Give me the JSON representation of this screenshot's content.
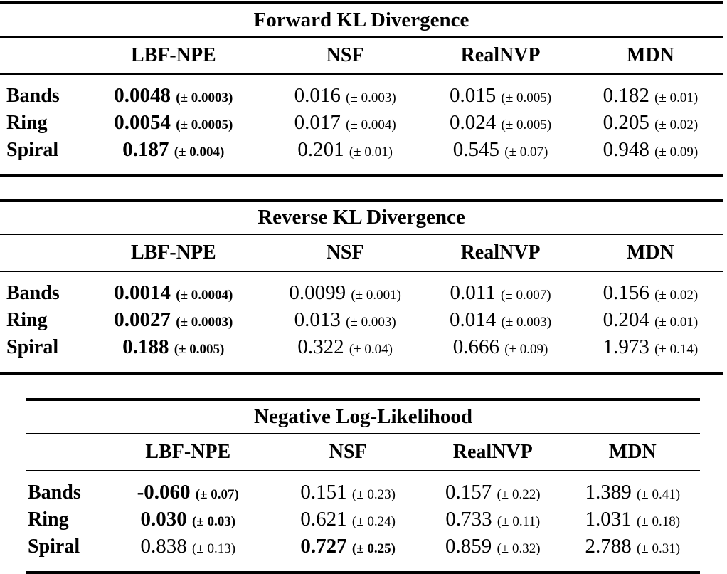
{
  "page": {
    "background_color": "#ffffff",
    "text_color": "#000000"
  },
  "tables": [
    {
      "title": "Forward KL Divergence",
      "columns": [
        "LBF-NPE",
        "NSF",
        "RealNVP",
        "MDN"
      ],
      "rows": [
        {
          "label": "Bands",
          "cells": [
            {
              "value": "0.0048",
              "pm": "(± 0.0003)",
              "bold": true
            },
            {
              "value": "0.016",
              "pm": "(± 0.003)",
              "bold": false
            },
            {
              "value": "0.015",
              "pm": "(± 0.005)",
              "bold": false
            },
            {
              "value": "0.182",
              "pm": "(± 0.01)",
              "bold": false
            }
          ]
        },
        {
          "label": "Ring",
          "cells": [
            {
              "value": "0.0054",
              "pm": "(± 0.0005)",
              "bold": true
            },
            {
              "value": "0.017",
              "pm": "(± 0.004)",
              "bold": false
            },
            {
              "value": "0.024",
              "pm": "(± 0.005)",
              "bold": false
            },
            {
              "value": "0.205",
              "pm": "(± 0.02)",
              "bold": false
            }
          ]
        },
        {
          "label": "Spiral",
          "cells": [
            {
              "value": "0.187",
              "pm": "(± 0.004)",
              "bold": true
            },
            {
              "value": "0.201",
              "pm": "(± 0.01)",
              "bold": false
            },
            {
              "value": "0.545",
              "pm": "(± 0.07)",
              "bold": false
            },
            {
              "value": "0.948",
              "pm": "(± 0.09)",
              "bold": false
            }
          ]
        }
      ]
    },
    {
      "title": "Reverse KL Divergence",
      "columns": [
        "LBF-NPE",
        "NSF",
        "RealNVP",
        "MDN"
      ],
      "rows": [
        {
          "label": "Bands",
          "cells": [
            {
              "value": "0.0014",
              "pm": "(± 0.0004)",
              "bold": true
            },
            {
              "value": "0.0099",
              "pm": "(± 0.001)",
              "bold": false
            },
            {
              "value": "0.011",
              "pm": "(± 0.007)",
              "bold": false
            },
            {
              "value": "0.156",
              "pm": "(± 0.02)",
              "bold": false
            }
          ]
        },
        {
          "label": "Ring",
          "cells": [
            {
              "value": "0.0027",
              "pm": "(± 0.0003)",
              "bold": true
            },
            {
              "value": "0.013",
              "pm": "(± 0.003)",
              "bold": false
            },
            {
              "value": "0.014",
              "pm": "(± 0.003)",
              "bold": false
            },
            {
              "value": "0.204",
              "pm": "(± 0.01)",
              "bold": false
            }
          ]
        },
        {
          "label": "Spiral",
          "cells": [
            {
              "value": "0.188",
              "pm": "(± 0.005)",
              "bold": true
            },
            {
              "value": "0.322",
              "pm": "(± 0.04)",
              "bold": false
            },
            {
              "value": "0.666",
              "pm": "(± 0.09)",
              "bold": false
            },
            {
              "value": "1.973",
              "pm": "(± 0.14)",
              "bold": false
            }
          ]
        }
      ]
    },
    {
      "title": "Negative Log-Likelihood",
      "columns": [
        "LBF-NPE",
        "NSF",
        "RealNVP",
        "MDN"
      ],
      "rows": [
        {
          "label": "Bands",
          "cells": [
            {
              "value": "-0.060",
              "pm": "(± 0.07)",
              "bold": true
            },
            {
              "value": "0.151",
              "pm": "(± 0.23)",
              "bold": false
            },
            {
              "value": "0.157",
              "pm": "(± 0.22)",
              "bold": false
            },
            {
              "value": "1.389",
              "pm": "(± 0.41)",
              "bold": false
            }
          ]
        },
        {
          "label": "Ring",
          "cells": [
            {
              "value": "0.030",
              "pm": "(± 0.03)",
              "bold": true
            },
            {
              "value": "0.621",
              "pm": "(± 0.24)",
              "bold": false
            },
            {
              "value": "0.733",
              "pm": "(± 0.11)",
              "bold": false
            },
            {
              "value": "1.031",
              "pm": "(± 0.18)",
              "bold": false
            }
          ]
        },
        {
          "label": "Spiral",
          "cells": [
            {
              "value": "0.838",
              "pm": "(± 0.13)",
              "bold": false
            },
            {
              "value": "0.727",
              "pm": "(± 0.25)",
              "bold": true
            },
            {
              "value": "0.859",
              "pm": "(± 0.32)",
              "bold": false
            },
            {
              "value": "2.788",
              "pm": "(± 0.31)",
              "bold": false
            }
          ]
        }
      ]
    }
  ]
}
